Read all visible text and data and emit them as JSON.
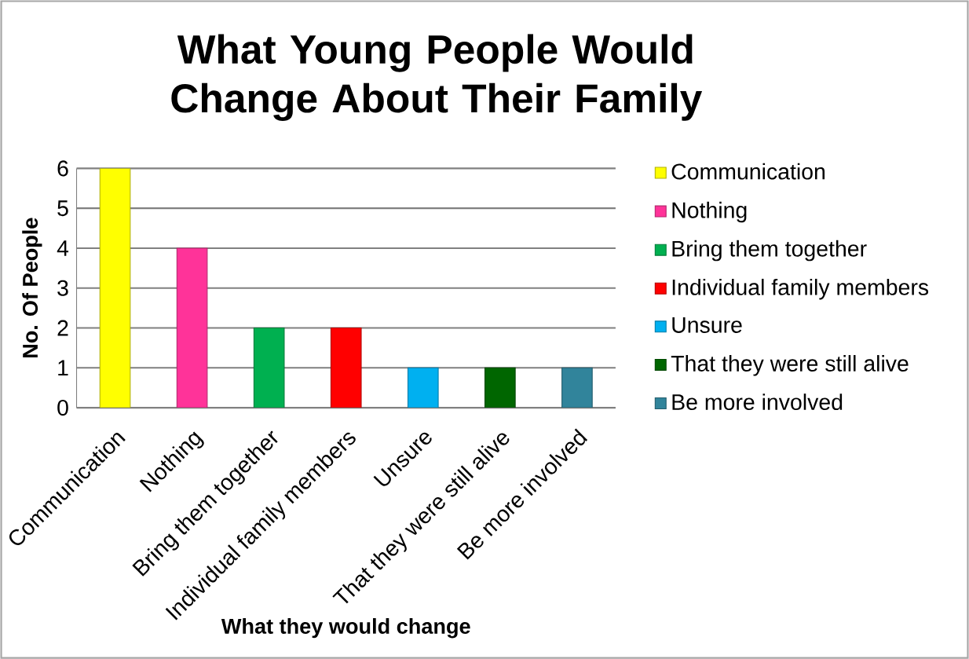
{
  "chart_data": {
    "type": "bar",
    "title": "What Young People Would Change About Their Family",
    "xlabel": "What they would change",
    "ylabel": "No. Of People",
    "categories": [
      "Communication",
      "Nothing",
      "Bring them together",
      "Individual family members",
      "Unsure",
      "That they were still alive",
      "Be more involved"
    ],
    "series": [
      {
        "name": "Communication",
        "color": "#ffff00",
        "values": [
          6,
          null,
          null,
          null,
          null,
          null,
          null
        ]
      },
      {
        "name": "Nothing",
        "color": "#ff3399",
        "values": [
          null,
          4,
          null,
          null,
          null,
          null,
          null
        ]
      },
      {
        "name": "Bring them together",
        "color": "#00b050",
        "values": [
          null,
          null,
          2,
          null,
          null,
          null,
          null
        ]
      },
      {
        "name": "Individual family members",
        "color": "#ff0000",
        "values": [
          null,
          null,
          null,
          2,
          null,
          null,
          null
        ]
      },
      {
        "name": "Unsure",
        "color": "#00b0f0",
        "values": [
          null,
          null,
          null,
          null,
          1,
          null,
          null
        ]
      },
      {
        "name": "That they were still alive",
        "color": "#006600",
        "values": [
          null,
          null,
          null,
          null,
          null,
          1,
          null
        ]
      },
      {
        "name": "Be more involved",
        "color": "#31849b",
        "values": [
          null,
          null,
          null,
          null,
          null,
          null,
          1
        ]
      }
    ],
    "ylim": [
      0,
      6
    ],
    "yticks": [
      0,
      1,
      2,
      3,
      4,
      5,
      6
    ],
    "grid": "y",
    "legend": "right"
  }
}
